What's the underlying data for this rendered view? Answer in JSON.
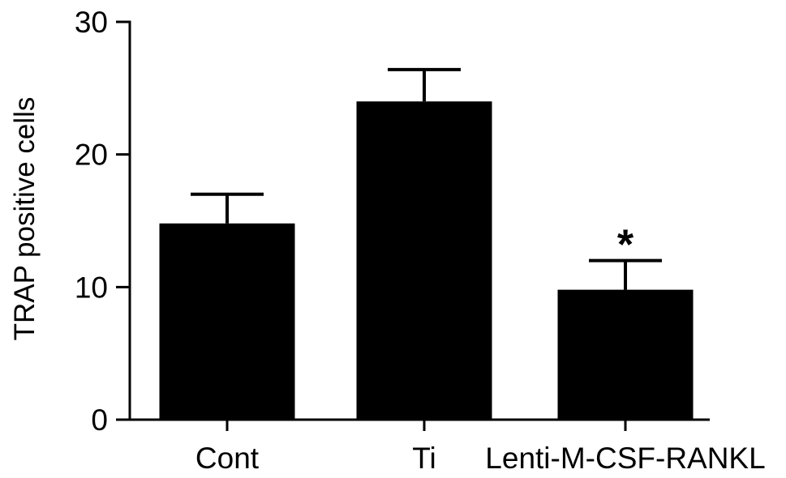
{
  "chart_data": {
    "type": "bar",
    "title": "",
    "xlabel": "",
    "ylabel": "TRAP positive cells",
    "ylim": [
      0,
      30
    ],
    "yticks": [
      0,
      10,
      20,
      30
    ],
    "grid": false,
    "categories": [
      "Cont",
      "Ti",
      "Lenti-M-CSF-RANKL"
    ],
    "values": [
      14.8,
      24.0,
      9.8
    ],
    "errors": [
      2.2,
      2.4,
      2.2
    ],
    "annotations": [
      "",
      "",
      "*"
    ],
    "bar_color": "#000000"
  }
}
